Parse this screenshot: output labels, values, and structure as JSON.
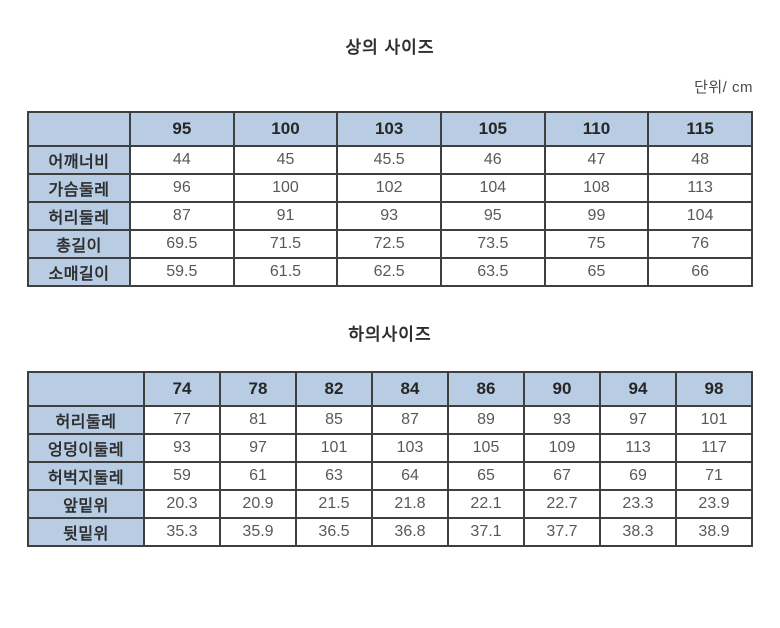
{
  "page": {
    "unit_label": "단위/ cm"
  },
  "colors": {
    "header_bg": "#b8cce4",
    "border": "#3f3f3f",
    "header_text": "#262626",
    "value_text": "#595959"
  },
  "tables": [
    {
      "title": "상의 사이즈",
      "columns": [
        "95",
        "100",
        "103",
        "105",
        "110",
        "115"
      ],
      "rows": [
        {
          "label": "어깨너비",
          "values": [
            "44",
            "45",
            "45.5",
            "46",
            "47",
            "48"
          ]
        },
        {
          "label": "가슴둘레",
          "values": [
            "96",
            "100",
            "102",
            "104",
            "108",
            "113"
          ]
        },
        {
          "label": "허리둘레",
          "values": [
            "87",
            "91",
            "93",
            "95",
            "99",
            "104"
          ]
        },
        {
          "label": "총길이",
          "values": [
            "69.5",
            "71.5",
            "72.5",
            "73.5",
            "75",
            "76"
          ]
        },
        {
          "label": "소매길이",
          "values": [
            "59.5",
            "61.5",
            "62.5",
            "63.5",
            "65",
            "66"
          ]
        }
      ]
    },
    {
      "title": "하의사이즈",
      "columns": [
        "74",
        "78",
        "82",
        "84",
        "86",
        "90",
        "94",
        "98"
      ],
      "rows": [
        {
          "label": "허리둘레",
          "values": [
            "77",
            "81",
            "85",
            "87",
            "89",
            "93",
            "97",
            "101"
          ]
        },
        {
          "label": "엉덩이둘레",
          "values": [
            "93",
            "97",
            "101",
            "103",
            "105",
            "109",
            "113",
            "117"
          ]
        },
        {
          "label": "허벅지둘레",
          "values": [
            "59",
            "61",
            "63",
            "64",
            "65",
            "67",
            "69",
            "71"
          ]
        },
        {
          "label": "앞밑위",
          "values": [
            "20.3",
            "20.9",
            "21.5",
            "21.8",
            "22.1",
            "22.7",
            "23.3",
            "23.9"
          ]
        },
        {
          "label": "뒷밑위",
          "values": [
            "35.3",
            "35.9",
            "36.5",
            "36.8",
            "37.1",
            "37.7",
            "38.3",
            "38.9"
          ]
        }
      ]
    }
  ]
}
